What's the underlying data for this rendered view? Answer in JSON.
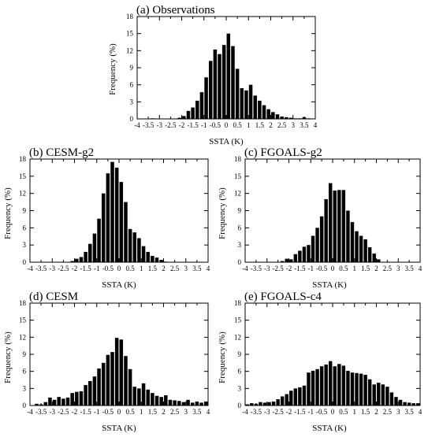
{
  "chart_data": [
    {
      "type": "bar",
      "title": "(a) Observations",
      "xlabel": "SSTA (K)",
      "ylabel": "Frequency (%)",
      "xlim": [
        -4,
        4
      ],
      "ylim": [
        0,
        18
      ],
      "xticks": [
        "-4",
        "-3.5",
        "-3",
        "-2.5",
        "-2",
        "-1.5",
        "-1",
        "-0.5",
        "0",
        "0.5",
        "1",
        "1.5",
        "2",
        "2.5",
        "3",
        "3.5",
        "4"
      ],
      "yticks": [
        "0",
        "3",
        "6",
        "9",
        "12",
        "15",
        "18"
      ],
      "bin_width": 0.2,
      "x": [
        -3.3,
        -2.1,
        -1.9,
        -1.7,
        -1.5,
        -1.3,
        -1.1,
        -0.9,
        -0.7,
        -0.5,
        -0.3,
        -0.1,
        0.1,
        0.3,
        0.5,
        0.7,
        0.9,
        1.1,
        1.3,
        1.5,
        1.7,
        1.9,
        2.1,
        2.3,
        2.5,
        2.7,
        2.9,
        3.1,
        3.3,
        3.5,
        3.7
      ],
      "values": [
        0.1,
        0.2,
        0.5,
        1.4,
        2.0,
        3.2,
        4.7,
        7.3,
        10.2,
        12.2,
        11.4,
        13.0,
        15.0,
        12.8,
        8.8,
        5.4,
        5.0,
        6.0,
        4.1,
        3.2,
        2.4,
        1.7,
        1.2,
        0.8,
        0.4,
        0.3,
        0.2,
        0.1,
        0.1,
        0.3,
        0.1
      ]
    },
    {
      "type": "bar",
      "title": "(b) CESM-g2",
      "xlabel": "SSTA (K)",
      "ylabel": "Frequency (%)",
      "xlim": [
        -4,
        4
      ],
      "ylim": [
        0,
        18
      ],
      "xticks": [
        "-4",
        "-3.5",
        "-3",
        "-2.5",
        "-2",
        "-1.5",
        "-1",
        "-0.5",
        "0",
        "0.5",
        "1",
        "1.5",
        "2",
        "2.5",
        "3",
        "3.5",
        "4"
      ],
      "yticks": [
        "0",
        "3",
        "6",
        "9",
        "12",
        "15",
        "18"
      ],
      "bin_width": 0.2,
      "x": [
        -2.1,
        -1.9,
        -1.7,
        -1.5,
        -1.3,
        -1.1,
        -0.9,
        -0.7,
        -0.5,
        -0.3,
        -0.1,
        0.1,
        0.3,
        0.5,
        0.7,
        0.9,
        1.1,
        1.3,
        1.5,
        1.7,
        1.9,
        2.1
      ],
      "values": [
        0.2,
        0.6,
        0.9,
        1.8,
        3.2,
        5.0,
        7.6,
        12.0,
        15.5,
        17.5,
        16.5,
        14.0,
        10.5,
        5.8,
        5.2,
        4.2,
        2.8,
        1.8,
        1.1,
        0.8,
        0.4,
        0.1
      ]
    },
    {
      "type": "bar",
      "title": "(c) FGOALS-g2",
      "xlabel": "SSTA (K)",
      "ylabel": "Frequency (%)",
      "xlim": [
        -4,
        4
      ],
      "ylim": [
        0,
        18
      ],
      "xticks": [
        "-4",
        "-3.5",
        "-3",
        "-2.5",
        "-2",
        "-1.5",
        "-1",
        "-0.5",
        "0",
        "0.5",
        "1",
        "1.5",
        "2",
        "2.5",
        "3",
        "3.5",
        "4"
      ],
      "yticks": [
        "0",
        "3",
        "6",
        "9",
        "12",
        "15",
        "18"
      ],
      "bin_width": 0.2,
      "x": [
        -2.3,
        -2.1,
        -1.9,
        -1.7,
        -1.5,
        -1.3,
        -1.1,
        -0.9,
        -0.7,
        -0.5,
        -0.3,
        -0.1,
        0.1,
        0.3,
        0.5,
        0.7,
        0.9,
        1.1,
        1.3,
        1.5,
        1.7,
        1.9,
        2.1
      ],
      "values": [
        0.2,
        0.6,
        0.5,
        1.4,
        2.0,
        2.7,
        3.0,
        4.6,
        6.0,
        8.0,
        11.0,
        13.8,
        12.5,
        12.6,
        12.6,
        9.0,
        7.0,
        5.4,
        4.6,
        4.0,
        2.6,
        1.5,
        0.5
      ]
    },
    {
      "type": "bar",
      "title": "(d) CESM",
      "xlabel": "SSTA (K)",
      "ylabel": "Frequency (%)",
      "xlim": [
        -4,
        4
      ],
      "ylim": [
        0,
        18
      ],
      "xticks": [
        "-4",
        "-3.5",
        "-3",
        "-2.5",
        "-2",
        "-1.5",
        "-1",
        "-0.5",
        "0",
        "0.5",
        "1",
        "1.5",
        "2",
        "2.5",
        "3",
        "3.5",
        "4"
      ],
      "yticks": [
        "0",
        "3",
        "6",
        "9",
        "12",
        "15",
        "18"
      ],
      "bin_width": 0.2,
      "x": [
        -3.7,
        -3.5,
        -3.3,
        -3.1,
        -2.9,
        -2.7,
        -2.5,
        -2.3,
        -2.1,
        -1.9,
        -1.7,
        -1.5,
        -1.3,
        -1.1,
        -0.9,
        -0.7,
        -0.5,
        -0.3,
        -0.1,
        0.1,
        0.3,
        0.5,
        0.7,
        0.9,
        1.1,
        1.3,
        1.5,
        1.7,
        1.9,
        2.1,
        2.3,
        2.5,
        2.7,
        2.9,
        3.1,
        3.3,
        3.5,
        3.7,
        3.9
      ],
      "values": [
        0.3,
        0.2,
        0.6,
        1.4,
        1.0,
        1.5,
        1.2,
        1.4,
        2.2,
        2.4,
        2.5,
        3.6,
        4.3,
        5.1,
        6.5,
        7.5,
        8.9,
        9.4,
        11.9,
        11.6,
        8.7,
        6.4,
        3.3,
        3.0,
        3.9,
        2.8,
        2.2,
        1.7,
        1.5,
        1.8,
        1.0,
        0.9,
        0.8,
        0.6,
        1.0,
        0.5,
        0.7,
        0.5,
        0.7
      ]
    },
    {
      "type": "bar",
      "title": "(e) FGOALS-c4",
      "xlabel": "SSTA (K)",
      "ylabel": "Frequency (%)",
      "xlim": [
        -4,
        4
      ],
      "ylim": [
        0,
        18
      ],
      "xticks": [
        "-4",
        "-3.5",
        "-3",
        "-2.5",
        "-2",
        "-1.5",
        "-1",
        "-0.5",
        "0",
        "0.5",
        "1",
        "1.5",
        "2",
        "2.5",
        "3",
        "3.5",
        "4"
      ],
      "yticks": [
        "0",
        "3",
        "6",
        "9",
        "12",
        "15",
        "18"
      ],
      "bin_width": 0.2,
      "x": [
        -3.9,
        -3.7,
        -3.5,
        -3.3,
        -3.1,
        -2.9,
        -2.7,
        -2.5,
        -2.3,
        -2.1,
        -1.9,
        -1.7,
        -1.5,
        -1.3,
        -1.1,
        -0.9,
        -0.7,
        -0.5,
        -0.3,
        -0.1,
        0.1,
        0.3,
        0.5,
        0.7,
        0.9,
        1.1,
        1.3,
        1.5,
        1.7,
        1.9,
        2.1,
        2.3,
        2.5,
        2.7,
        2.9,
        3.1,
        3.3,
        3.5,
        3.7,
        3.9
      ],
      "values": [
        0.2,
        0.4,
        0.3,
        0.6,
        0.5,
        0.6,
        0.7,
        1.1,
        1.6,
        2.0,
        2.6,
        3.0,
        3.2,
        3.5,
        5.8,
        6.1,
        6.4,
        6.9,
        7.2,
        7.8,
        6.9,
        7.3,
        7.0,
        6.1,
        5.8,
        5.7,
        5.6,
        5.4,
        4.6,
        3.7,
        4.0,
        3.7,
        3.3,
        2.3,
        1.5,
        1.0,
        0.6,
        0.5,
        0.4,
        0.4
      ]
    }
  ]
}
